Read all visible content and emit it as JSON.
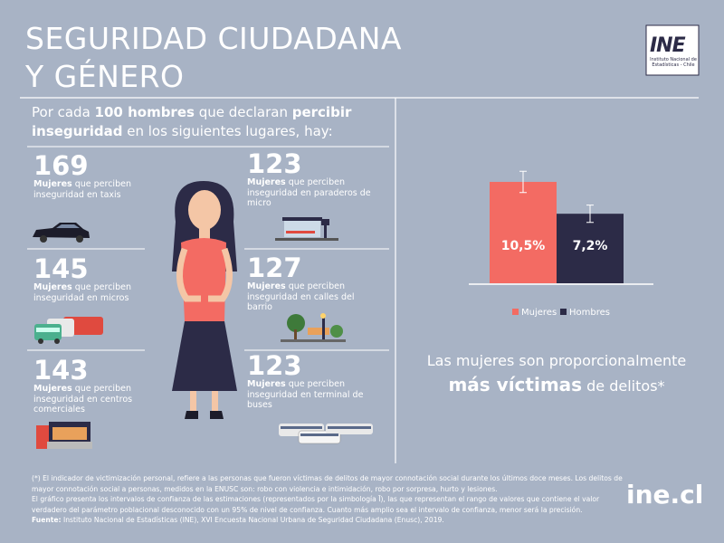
{
  "title": [
    "SEGURIDAD CIUDADANA",
    "Y GÉNERO"
  ],
  "logo": {
    "mark": "INE",
    "text": "Instituto Nacional de Estadísticas - Chile"
  },
  "intro": [
    {
      "text": "Por cada "
    },
    {
      "text": "100 hombres",
      "bold": true
    },
    {
      "text": " que declaran "
    },
    {
      "text": "percibir inseguridad",
      "bold": true
    },
    {
      "text": " en los siguientes lugares, hay:"
    }
  ],
  "items": [
    {
      "value": 169,
      "bold": "Mujeres",
      "text": " que perciben inseguridad en taxis"
    },
    {
      "value": 145,
      "bold": "Mujeres",
      "text": " que perciben inseguridad en micros"
    },
    {
      "value": 143,
      "bold": "Mujeres",
      "text": " que perciben inseguridad en centros comerciales"
    },
    {
      "value": 123,
      "bold": "Mujeres",
      "text": " que perciben inseguridad en paraderos de micro"
    },
    {
      "value": 127,
      "bold": "Mujeres",
      "text": " que perciben inseguridad en calles del barrio"
    },
    {
      "value": 123,
      "bold": "Mujeres",
      "text": " que perciben inseguridad en terminal de buses"
    }
  ],
  "chart_data": {
    "type": "bar",
    "categories": [
      "Mujeres",
      "Hombres"
    ],
    "values": [
      10.5,
      7.2
    ],
    "value_labels": [
      "10,5%",
      "7,2%"
    ],
    "errors": [
      1.1,
      0.9
    ],
    "colors": [
      "#f36b63",
      "#2c2b47"
    ],
    "legend": "bottom"
  },
  "caption": {
    "line1": "Las mujeres son proporcionalmente",
    "bold": "más víctimas",
    "rest": " de delitos*"
  },
  "footnote": {
    "p1": "(*) El indicador de victimización personal, refiere a las personas que fueron víctimas de delitos de mayor connotación social durante los últimos doce meses. Los delitos de mayor connotación social a personas, medidos en la ENUSC son: robo con violencia e intimidación, robo por sorpresa, hurto y lesiones.",
    "p2": "El gráfico presenta los intervalos de confianza de las estimaciones (representados por la simbología Ī), las que representan el rango de valores que contiene el valor verdadero del parámetro poblacional desconocido con un 95% de nivel de confianza. Cuanto más amplio sea el intervalo de confianza, menor será la precisión.",
    "source_label": "Fuente:",
    "source": " Instituto Nacional de Estadísticas (INE), XVI Encuesta Nacional Urbana de Seguridad Ciudadana (Enusc), 2019."
  },
  "site": "ine.cl"
}
